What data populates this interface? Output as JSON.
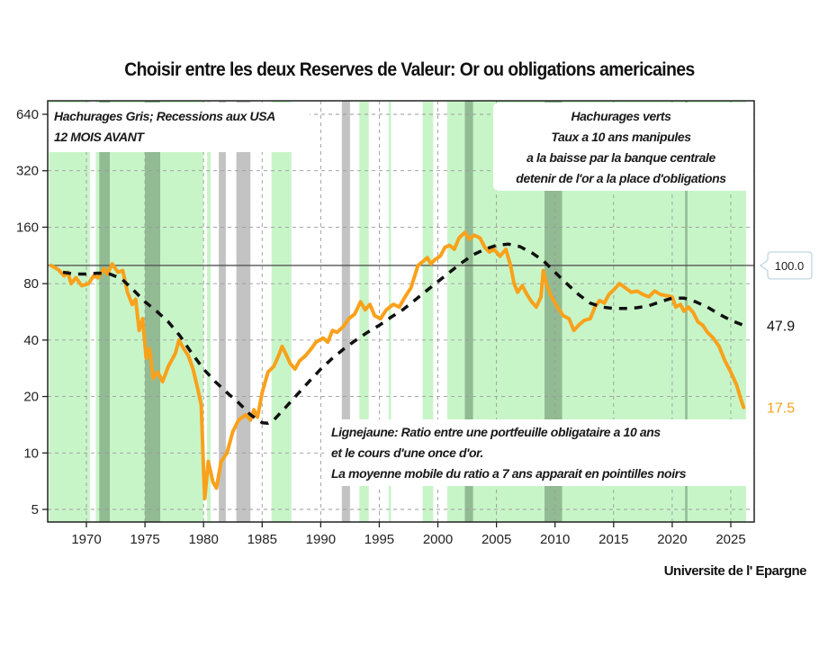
{
  "chart_data": {
    "type": "line",
    "title": "Choisir entre les deux Reserves de Valeur:  Or ou obligations americaines",
    "credit": "Universite de l' Epargne",
    "xlabel": "",
    "ylabel": "",
    "x_range": [
      1966.7,
      2027
    ],
    "y_scale": "log2",
    "ylim": [
      4.3,
      640
    ],
    "grid": true,
    "x_ticks": [
      1970,
      1975,
      1980,
      1985,
      1990,
      1995,
      2000,
      2005,
      2010,
      2015,
      2020,
      2025
    ],
    "y_ticks": [
      5,
      10,
      20,
      40,
      80,
      160,
      320,
      640
    ],
    "reference_line": {
      "value": 100,
      "label": "100.0"
    },
    "end_labels": [
      {
        "series": "moyenne_mobile_7ans",
        "value": "47.9"
      },
      {
        "series": "ratio",
        "value": "17.5"
      }
    ],
    "annotations": {
      "grey_note": [
        "Hachurages Gris; Recessions aux USA",
        "12 MOIS AVANT"
      ],
      "green_note": [
        "Hachurages verts",
        "Taux a 10 ans manipules",
        "a la baisse par la banque centrale",
        "detenir de l'or a la place d'obligations"
      ],
      "line_note": [
        "Lignejaune: Ratio entre une portfeuille obligataire a 10 ans",
        "et le cours d'une once d'or.",
        "La moyenne mobile du ratio a 7 ans apparait en pointilles noirs"
      ]
    },
    "green_periods": [
      [
        1966.8,
        1970.3
      ],
      [
        1970.8,
        1980.0
      ],
      [
        1980.3,
        1980.6
      ],
      [
        1983.0,
        1983.7
      ],
      [
        1985.8,
        1987.5
      ],
      [
        1993.3,
        1994.1
      ],
      [
        1995.8,
        1996.0
      ],
      [
        1998.7,
        1999.6
      ],
      [
        2000.8,
        2026.3
      ]
    ],
    "grey_periods": [
      [
        1971.1,
        1972.0
      ],
      [
        1975.0,
        1976.3
      ],
      [
        1981.3,
        1981.9
      ],
      [
        1982.8,
        1984.0
      ],
      [
        1991.8,
        1992.5
      ],
      [
        2002.3,
        2003.0
      ],
      [
        2009.1,
        2010.6
      ],
      [
        2021.1,
        2021.3
      ]
    ],
    "series": [
      {
        "name": "ratio",
        "label": "Ligne jaune: ratio obligations 10 ans / once d'or",
        "color": "#F9A11B",
        "points": [
          [
            1967.0,
            100
          ],
          [
            1967.6,
            95
          ],
          [
            1968.1,
            88
          ],
          [
            1968.4,
            92
          ],
          [
            1968.7,
            80
          ],
          [
            1969.1,
            86
          ],
          [
            1969.6,
            78
          ],
          [
            1970.2,
            80
          ],
          [
            1970.6,
            88
          ],
          [
            1971.0,
            86
          ],
          [
            1971.5,
            96
          ],
          [
            1971.8,
            90
          ],
          [
            1972.2,
            102
          ],
          [
            1972.7,
            92
          ],
          [
            1973.1,
            94
          ],
          [
            1973.5,
            72
          ],
          [
            1973.9,
            62
          ],
          [
            1974.2,
            66
          ],
          [
            1974.5,
            45
          ],
          [
            1974.8,
            52
          ],
          [
            1975.1,
            32
          ],
          [
            1975.4,
            36
          ],
          [
            1975.7,
            25
          ],
          [
            1976.1,
            27
          ],
          [
            1976.5,
            24
          ],
          [
            1977.0,
            29
          ],
          [
            1977.6,
            34
          ],
          [
            1977.9,
            40
          ],
          [
            1978.3,
            36
          ],
          [
            1978.7,
            33
          ],
          [
            1979.1,
            28
          ],
          [
            1979.5,
            22
          ],
          [
            1979.8,
            18
          ],
          [
            1980.0,
            8
          ],
          [
            1980.1,
            5.7
          ],
          [
            1980.4,
            9
          ],
          [
            1980.8,
            7
          ],
          [
            1981.1,
            6.5
          ],
          [
            1981.5,
            9
          ],
          [
            1982.0,
            10
          ],
          [
            1982.5,
            13
          ],
          [
            1983.0,
            15
          ],
          [
            1983.6,
            16
          ],
          [
            1984.0,
            15
          ],
          [
            1984.3,
            17
          ],
          [
            1984.6,
            15.5
          ],
          [
            1985.0,
            21
          ],
          [
            1985.5,
            27
          ],
          [
            1986.0,
            29
          ],
          [
            1986.4,
            33
          ],
          [
            1986.7,
            37
          ],
          [
            1987.0,
            34
          ],
          [
            1987.4,
            30
          ],
          [
            1987.8,
            28
          ],
          [
            1988.2,
            31
          ],
          [
            1988.7,
            33
          ],
          [
            1989.2,
            36
          ],
          [
            1989.6,
            39
          ],
          [
            1990.2,
            41
          ],
          [
            1990.6,
            39
          ],
          [
            1991.0,
            45
          ],
          [
            1991.4,
            44
          ],
          [
            1991.9,
            47
          ],
          [
            1992.4,
            52
          ],
          [
            1992.9,
            55
          ],
          [
            1993.4,
            64
          ],
          [
            1993.8,
            58
          ],
          [
            1994.2,
            62
          ],
          [
            1994.6,
            54
          ],
          [
            1995.1,
            52
          ],
          [
            1995.6,
            58
          ],
          [
            1996.2,
            62
          ],
          [
            1996.7,
            60
          ],
          [
            1997.2,
            68
          ],
          [
            1997.7,
            76
          ],
          [
            1998.3,
            100
          ],
          [
            1998.8,
            106
          ],
          [
            1999.1,
            110
          ],
          [
            1999.4,
            102
          ],
          [
            1999.8,
            108
          ],
          [
            2000.2,
            112
          ],
          [
            2000.6,
            125
          ],
          [
            2001.0,
            128
          ],
          [
            2001.4,
            122
          ],
          [
            2001.8,
            140
          ],
          [
            2002.3,
            150
          ],
          [
            2002.7,
            138
          ],
          [
            2003.1,
            145
          ],
          [
            2003.6,
            140
          ],
          [
            2004.0,
            125
          ],
          [
            2004.4,
            118
          ],
          [
            2004.8,
            122
          ],
          [
            2005.3,
            112
          ],
          [
            2005.8,
            122
          ],
          [
            2006.2,
            100
          ],
          [
            2006.5,
            80
          ],
          [
            2006.8,
            72
          ],
          [
            2007.2,
            78
          ],
          [
            2007.6,
            70
          ],
          [
            2008.0,
            64
          ],
          [
            2008.4,
            60
          ],
          [
            2008.8,
            68
          ],
          [
            2009.0,
            94
          ],
          [
            2009.3,
            78
          ],
          [
            2009.7,
            68
          ],
          [
            2010.2,
            60
          ],
          [
            2010.7,
            54
          ],
          [
            2011.2,
            52
          ],
          [
            2011.6,
            45
          ],
          [
            2012.0,
            48
          ],
          [
            2012.5,
            51
          ],
          [
            2013.0,
            52
          ],
          [
            2013.4,
            60
          ],
          [
            2013.8,
            65
          ],
          [
            2014.2,
            63
          ],
          [
            2014.6,
            70
          ],
          [
            2015.0,
            74
          ],
          [
            2015.5,
            80
          ],
          [
            2016.0,
            76
          ],
          [
            2016.5,
            72
          ],
          [
            2017.0,
            73
          ],
          [
            2017.5,
            70
          ],
          [
            2018.0,
            68
          ],
          [
            2018.5,
            73
          ],
          [
            2019.0,
            70
          ],
          [
            2019.5,
            69
          ],
          [
            2020.0,
            68
          ],
          [
            2020.3,
            60
          ],
          [
            2020.7,
            62
          ],
          [
            2021.0,
            57
          ],
          [
            2021.4,
            60
          ],
          [
            2021.8,
            56
          ],
          [
            2022.2,
            50
          ],
          [
            2022.6,
            48
          ],
          [
            2023.0,
            44
          ],
          [
            2023.5,
            41
          ],
          [
            2024.0,
            37
          ],
          [
            2024.5,
            31
          ],
          [
            2025.0,
            27
          ],
          [
            2025.5,
            23
          ],
          [
            2025.9,
            19
          ],
          [
            2026.1,
            17.5
          ]
        ]
      },
      {
        "name": "moyenne_mobile_7ans",
        "label": "Moyenne mobile du ratio a 7 ans (pointilles noirs)",
        "color": "#111111",
        "points": [
          [
            1968.0,
            92
          ],
          [
            1969.0,
            90
          ],
          [
            1970.0,
            90
          ],
          [
            1971.0,
            91
          ],
          [
            1972.0,
            90
          ],
          [
            1973.0,
            85
          ],
          [
            1974.0,
            74
          ],
          [
            1975.0,
            64
          ],
          [
            1976.0,
            57
          ],
          [
            1977.0,
            50
          ],
          [
            1978.0,
            42
          ],
          [
            1979.0,
            34
          ],
          [
            1980.0,
            28
          ],
          [
            1981.0,
            24
          ],
          [
            1982.0,
            21
          ],
          [
            1983.0,
            18.5
          ],
          [
            1984.0,
            16
          ],
          [
            1985.0,
            14.5
          ],
          [
            1985.5,
            14.4
          ],
          [
            1986.0,
            15
          ],
          [
            1987.0,
            17.5
          ],
          [
            1988.0,
            20.5
          ],
          [
            1989.0,
            24
          ],
          [
            1990.0,
            28
          ],
          [
            1991.0,
            32
          ],
          [
            1992.0,
            36
          ],
          [
            1993.0,
            40
          ],
          [
            1994.0,
            44
          ],
          [
            1995.0,
            48
          ],
          [
            1996.0,
            53
          ],
          [
            1997.0,
            58
          ],
          [
            1998.0,
            65
          ],
          [
            1999.0,
            73
          ],
          [
            2000.0,
            82
          ],
          [
            2001.0,
            92
          ],
          [
            2002.0,
            103
          ],
          [
            2003.0,
            114
          ],
          [
            2004.0,
            122
          ],
          [
            2005.0,
            128
          ],
          [
            2006.0,
            130
          ],
          [
            2007.0,
            126
          ],
          [
            2008.0,
            117
          ],
          [
            2009.0,
            106
          ],
          [
            2010.0,
            92
          ],
          [
            2011.0,
            80
          ],
          [
            2012.0,
            70
          ],
          [
            2013.0,
            63
          ],
          [
            2014.0,
            60
          ],
          [
            2015.0,
            59
          ],
          [
            2016.0,
            59
          ],
          [
            2017.0,
            59.5
          ],
          [
            2018.0,
            61
          ],
          [
            2019.0,
            64
          ],
          [
            2020.0,
            67
          ],
          [
            2021.0,
            67
          ],
          [
            2022.0,
            64
          ],
          [
            2023.0,
            60
          ],
          [
            2024.0,
            55
          ],
          [
            2025.0,
            51
          ],
          [
            2026.1,
            47.9
          ]
        ]
      }
    ]
  }
}
